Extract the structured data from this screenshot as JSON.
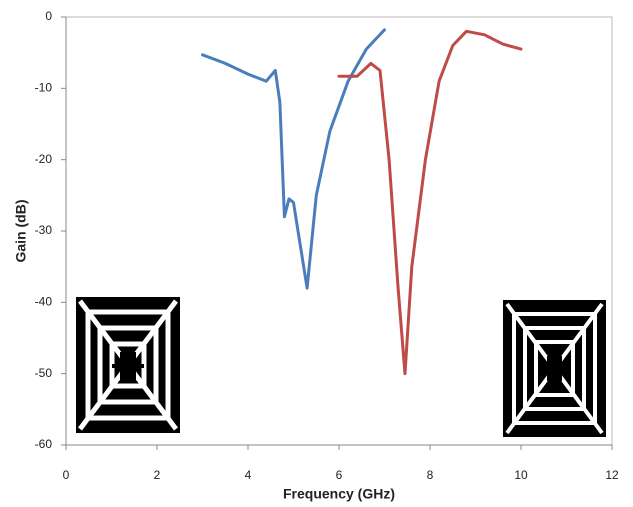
{
  "chart_data": {
    "type": "line",
    "x_label": "Frequency (GHz)",
    "y_label": "Gain (dB)",
    "xlim": [
      0,
      12
    ],
    "xticks": [
      0,
      2,
      4,
      6,
      8,
      10,
      12
    ],
    "ylim": [
      -60,
      0
    ],
    "yticks": [
      -60,
      -50,
      -40,
      -30,
      -20,
      -10,
      0
    ],
    "series": [
      {
        "color": "#4a7ebb",
        "x": [
          3,
          3.5,
          4,
          4.4,
          4.6,
          4.7,
          4.8,
          4.9,
          5,
          5.1,
          5.3,
          5.5,
          5.8,
          6.2,
          6.6,
          7
        ],
        "values": [
          -5.3,
          -6.5,
          -8,
          -9,
          -7.5,
          -12,
          -28,
          -25.5,
          -26,
          -30,
          -38,
          -25,
          -16,
          -9,
          -4.5,
          -1.8
        ]
      },
      {
        "color": "#be4b48",
        "x": [
          6,
          6.4,
          6.7,
          6.9,
          7.1,
          7.3,
          7.45,
          7.6,
          7.9,
          8.2,
          8.5,
          8.8,
          9.2,
          9.6,
          10
        ],
        "values": [
          -8.3,
          -8.3,
          -6.5,
          -7.5,
          -20,
          -38,
          -50,
          -35,
          -20,
          -9,
          -4,
          -2,
          -2.5,
          -3.8,
          -4.5
        ]
      }
    ]
  }
}
